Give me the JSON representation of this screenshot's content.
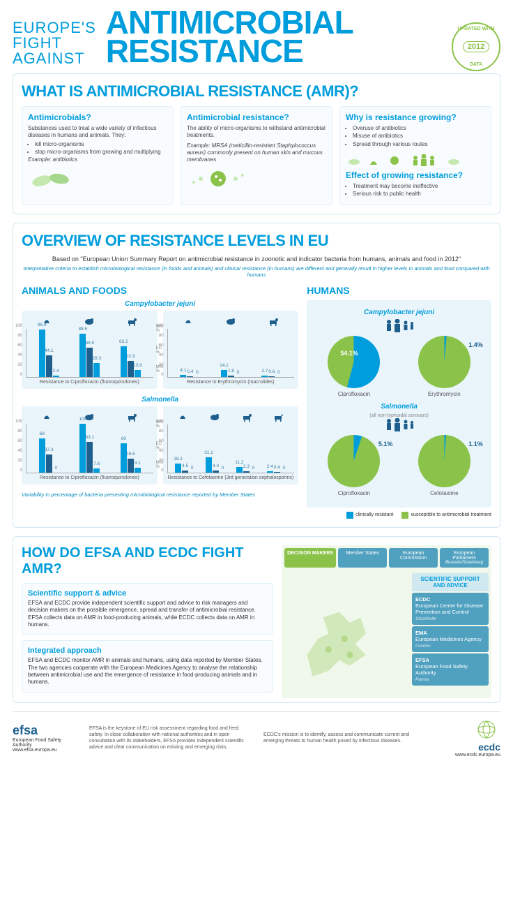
{
  "header": {
    "pre": "EUROPE'S\nFIGHT\nAGAINST",
    "main": "ANTIMICROBIAL\nRESISTANCE",
    "badge_year": "2012",
    "badge_top": "UPDATED WITH",
    "badge_bottom": "DATA"
  },
  "colors": {
    "primary_blue": "#009ddc",
    "dark_blue": "#1e5f8e",
    "green": "#8bc34a",
    "light_blue_bg": "#eaf5fb",
    "panel_bg": "#f8fcfe"
  },
  "section1": {
    "title": "WHAT IS ANTIMICROBIAL RESISTANCE (AMR)?",
    "cols": [
      {
        "title": "Antimicrobials?",
        "text": "Substances used to treat a wide variety of infectious diseases in humans and animals. They:",
        "bullets": [
          "kill micro-organisms",
          "stop micro-organisms from growing and multiplying"
        ],
        "example": "Example: antibiotics"
      },
      {
        "title": "Antimicrobial resistance?",
        "text": "The ability of micro-organisms to withstand antimicrobial treatments.",
        "example": "Example: MRSA (meticillin-resistant Staphylococcus aureus) commonly present on human skin and mucous membranes"
      },
      {
        "title1": "Why is resistance growing?",
        "bullets1": [
          "Overuse of antibiotics",
          "Misuse of antibiotics",
          "Spread through various routes"
        ],
        "title2": "Effect of growing resistance?",
        "bullets2": [
          "Treatment may become ineffective",
          "Serious risk to public health"
        ]
      }
    ]
  },
  "section2": {
    "title": "OVERVIEW OF RESISTANCE LEVELS IN EU",
    "intro": "Based on \"European Union Summary Report on antimicrobial resistance in zoonotic and indicator bacteria from humans, animals and food in 2012\"",
    "note": "Interpretative criteria to establish microbiological resistance (in foods and animals) and clinical resistance (in humans) are different and generally result in higher levels in animals and food compared with humans",
    "animals_title": "ANIMALS AND FOODS",
    "humans_title": "HUMANS",
    "species": [
      "Campylobacter jejuni",
      "Salmonella"
    ],
    "salmonella_sub": "(all non-typhoidal serovars)",
    "y_ticks": [
      0,
      20,
      40,
      60,
      80,
      100
    ],
    "scale_labels": {
      "max": "MAX %",
      "eu": "EU %",
      "min": "MIN %"
    },
    "charts_animals": [
      {
        "label": "Resistance to Ciprofloxacin (fluoroquinolones)",
        "groups": [
          {
            "vals": [
              96.9,
              44.1,
              2.4
            ],
            "colors": [
              "#009ddc",
              "#1e5f8e",
              "#009ddc"
            ]
          },
          {
            "vals": [
              88.5,
              59.5,
              28.3
            ],
            "colors": [
              "#009ddc",
              "#1e5f8e",
              "#009ddc"
            ]
          },
          {
            "vals": [
              63.2,
              32.9,
              13.9
            ],
            "colors": [
              "#009ddc",
              "#1e5f8e",
              "#009ddc"
            ]
          }
        ]
      },
      {
        "label": "Resistance to Erythromycin (macrolides)",
        "groups": [
          {
            "vals": [
              4.1,
              0.4,
              0
            ],
            "colors": [
              "#009ddc",
              "#1e5f8e",
              "#009ddc"
            ]
          },
          {
            "vals": [
              14.1,
              1.8,
              0
            ],
            "colors": [
              "#009ddc",
              "#1e5f8e",
              "#009ddc"
            ]
          },
          {
            "vals": [
              2.7,
              0.6,
              0
            ],
            "colors": [
              "#009ddc",
              "#1e5f8e",
              "#009ddc"
            ]
          }
        ]
      },
      {
        "label": "Resistance to Ciprofloxacin (fluoroquinolones)",
        "groups": [
          {
            "vals": [
              69.0,
              37.3,
              0
            ],
            "colors": [
              "#009ddc",
              "#1e5f8e",
              "#009ddc"
            ]
          },
          {
            "vals": [
              100,
              63.1,
              7.6
            ],
            "colors": [
              "#009ddc",
              "#1e5f8e",
              "#009ddc"
            ]
          },
          {
            "vals": [
              60.0,
              28.6,
              9.1
            ],
            "colors": [
              "#009ddc",
              "#1e5f8e",
              "#009ddc"
            ]
          }
        ]
      },
      {
        "label": "Resistance to Cefotaxime (3rd generation cephalosporins)",
        "groups": [
          {
            "vals": [
              18.1,
              4.5,
              0
            ],
            "colors": [
              "#009ddc",
              "#1e5f8e",
              "#009ddc"
            ]
          },
          {
            "vals": [
              31.1,
              4.3,
              0
            ],
            "colors": [
              "#009ddc",
              "#1e5f8e",
              "#009ddc"
            ]
          },
          {
            "vals": [
              11.2,
              2.3,
              0
            ],
            "colors": [
              "#009ddc",
              "#1e5f8e",
              "#009ddc"
            ]
          },
          {
            "vals": [
              2.4,
              0.4,
              0
            ],
            "colors": [
              "#009ddc",
              "#1e5f8e",
              "#009ddc"
            ]
          }
        ]
      }
    ],
    "pies": [
      {
        "label": "Ciprofloxacin",
        "value": 54.1,
        "color_main": "#8bc34a",
        "color_slice": "#009ddc"
      },
      {
        "label": "Erythromycin",
        "value": 1.4,
        "color_main": "#8bc34a",
        "color_slice": "#009ddc"
      },
      {
        "label": "Ciprofloxacin",
        "value": 5.1,
        "color_main": "#8bc34a",
        "color_slice": "#009ddc"
      },
      {
        "label": "Cefotaxime",
        "value": 1.1,
        "color_main": "#8bc34a",
        "color_slice": "#009ddc"
      }
    ],
    "legend": [
      {
        "color": "#009ddc",
        "label": "clinically resistant"
      },
      {
        "color": "#8bc34a",
        "label": "susceptible to antimicrobial treatment"
      }
    ],
    "variability": "Variability in percentage of bacteria presenting microbiological resistance reported by Member States"
  },
  "section3": {
    "title": "HOW DO EFSA AND ECDC FIGHT AMR?",
    "boxes": [
      {
        "title": "Scientific support & advice",
        "text": "EFSA and ECDC provide independent scientific support and advice to risk managers and decision makers on the possible emergence, spread and transfer of antimicrobial resistance. EFSA collects data on AMR in food-producing animals, while ECDC collects data on AMR in humans."
      },
      {
        "title": "Integrated approach",
        "text": "EFSA and ECDC monitor AMR in animals and humans, using data reported by Member States. The two agencies cooperate with the European Medicines Agency to analyse the relationship between antimicrobial use and the emergence of resistance in food-producing animals and in humans."
      }
    ],
    "dm_label": "DECISION MAKERS",
    "dm": [
      "Member States",
      "European Commission",
      "European Parliament"
    ],
    "dm_sub": [
      "",
      "",
      "Brussels/Strasbourg"
    ],
    "sci_header": "SCIENTIFIC SUPPORT AND ADVICE",
    "sci": [
      {
        "acr": "ECDC",
        "name": "European Centre for Disease Prevention and Control",
        "loc": "Stockholm"
      },
      {
        "acr": "EMA",
        "name": "European Medicines Agency",
        "loc": "London"
      },
      {
        "acr": "EFSA",
        "name": "European Food Safety Authority",
        "loc": "Parma"
      }
    ]
  },
  "footer": {
    "efsa_name": "efsa",
    "efsa_full": "European Food Safety Authority",
    "efsa_url": "www.efsa.europa.eu",
    "efsa_text": "EFSA is the keystone of EU risk assessment regarding food and feed safety. In close collaboration with national authorities and in open consultation with its stakeholders, EFSA provides independent scientific advice and clear communication on existing and emerging risks.",
    "ecdc_text": "ECDC's mission is to identify, assess and communicate current and emerging threats to human health posed by infectious diseases.",
    "ecdc_name": "ecdc",
    "ecdc_url": "www.ecdc.europa.eu"
  }
}
